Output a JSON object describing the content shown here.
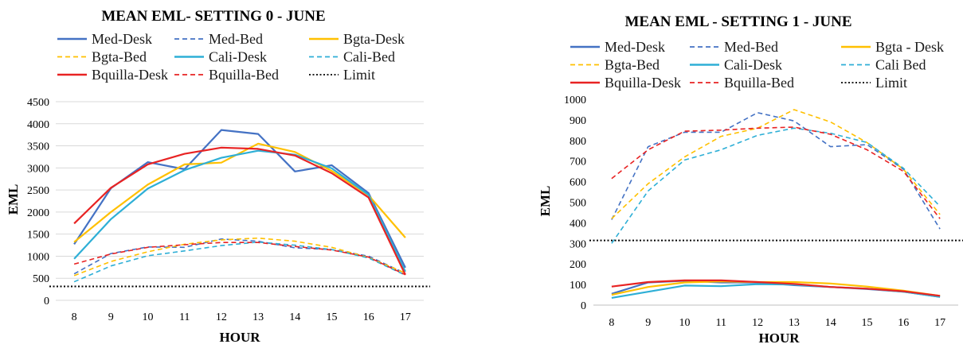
{
  "colors": {
    "med": "#4472c4",
    "bgta": "#ffc000",
    "cali": "#2eafd6",
    "bquilla": "#e82323",
    "limit": "#000000"
  },
  "chart_data": [
    {
      "type": "line",
      "title": "MEAN EML- SETTING 0 - JUNE",
      "xlabel": "HOUR",
      "ylabel": "EML",
      "x": [
        8,
        9,
        10,
        11,
        12,
        13,
        14,
        15,
        16,
        17
      ],
      "ylim": [
        0,
        4500
      ],
      "yticks": [
        0,
        500,
        1000,
        1500,
        2000,
        2500,
        3000,
        3500,
        4000,
        4500
      ],
      "grid": true,
      "legend_position": "top",
      "series": [
        {
          "name": "Med-Desk",
          "color_key": "med",
          "style": "solid",
          "values": [
            1270,
            2540,
            3130,
            2970,
            3860,
            3770,
            2920,
            3060,
            2430,
            740
          ]
        },
        {
          "name": "Med-Bed",
          "color_key": "med",
          "style": "dashed",
          "values": [
            600,
            1060,
            1210,
            1200,
            1390,
            1340,
            1190,
            1150,
            1000,
            610
          ]
        },
        {
          "name": "Bgta-Desk",
          "color_key": "bgta",
          "style": "solid",
          "values": [
            1320,
            2000,
            2620,
            3080,
            3120,
            3550,
            3360,
            2930,
            2380,
            1420
          ]
        },
        {
          "name": "Bgta-Bed",
          "color_key": "bgta",
          "style": "dashed",
          "values": [
            560,
            880,
            1100,
            1270,
            1370,
            1410,
            1340,
            1200,
            970,
            620
          ]
        },
        {
          "name": "Cali-Desk",
          "color_key": "cali",
          "style": "solid",
          "values": [
            940,
            1840,
            2530,
            2950,
            3230,
            3390,
            3300,
            2990,
            2390,
            650
          ]
        },
        {
          "name": "Cali-Bed",
          "color_key": "cali",
          "style": "dashed",
          "values": [
            420,
            780,
            1010,
            1120,
            1240,
            1320,
            1250,
            1150,
            960,
            570
          ]
        },
        {
          "name": "Bquilla-Desk",
          "color_key": "bquilla",
          "style": "solid",
          "values": [
            1740,
            2550,
            3080,
            3320,
            3460,
            3430,
            3280,
            2880,
            2330,
            580
          ]
        },
        {
          "name": "Bquilla-Bed",
          "color_key": "bquilla",
          "style": "dashed",
          "values": [
            820,
            1050,
            1200,
            1260,
            1310,
            1310,
            1220,
            1140,
            980,
            580
          ]
        },
        {
          "name": "Limit",
          "color_key": "limit",
          "style": "dotted",
          "values": [
            314,
            314,
            314,
            314,
            314,
            314,
            314,
            314,
            314,
            314
          ],
          "full_width": true
        }
      ]
    },
    {
      "type": "line",
      "title": "MEAN EML - SETTING 1 - JUNE",
      "xlabel": "HOUR",
      "ylabel": "EML",
      "x": [
        8,
        9,
        10,
        11,
        12,
        13,
        14,
        15,
        16,
        17
      ],
      "ylim": [
        0,
        1000
      ],
      "yticks": [
        0,
        100,
        200,
        300,
        400,
        500,
        600,
        700,
        800,
        900,
        1000
      ],
      "grid": false,
      "legend_position": "top",
      "series": [
        {
          "name": "Med-Desk",
          "color_key": "med",
          "style": "solid",
          "values": [
            55,
            110,
            118,
            110,
            110,
            97,
            88,
            78,
            65,
            40
          ]
        },
        {
          "name": "Med-Bed",
          "color_key": "med",
          "style": "dashed",
          "values": [
            415,
            770,
            840,
            840,
            935,
            895,
            770,
            780,
            660,
            370
          ]
        },
        {
          "name": "Bgta - Desk",
          "color_key": "bgta",
          "style": "solid",
          "values": [
            50,
            88,
            110,
            115,
            112,
            112,
            105,
            90,
            70,
            45
          ]
        },
        {
          "name": "Bgta-Bed",
          "color_key": "bgta",
          "style": "dashed",
          "values": [
            420,
            590,
            720,
            820,
            860,
            950,
            890,
            790,
            660,
            440
          ]
        },
        {
          "name": "Cali-Desk",
          "color_key": "cali",
          "style": "solid",
          "values": [
            35,
            65,
            95,
            92,
            102,
            100,
            88,
            80,
            65,
            40
          ]
        },
        {
          "name": "Cali Bed",
          "color_key": "cali",
          "style": "dashed",
          "values": [
            300,
            555,
            705,
            755,
            825,
            860,
            835,
            790,
            665,
            480
          ]
        },
        {
          "name": "Bquilla-Desk",
          "color_key": "bquilla",
          "style": "solid",
          "values": [
            90,
            112,
            120,
            120,
            112,
            103,
            88,
            80,
            67,
            45
          ]
        },
        {
          "name": "Bquilla-Bed",
          "color_key": "bquilla",
          "style": "dashed",
          "values": [
            615,
            755,
            845,
            850,
            860,
            865,
            830,
            755,
            650,
            420
          ]
        },
        {
          "name": "Limit",
          "color_key": "limit",
          "style": "dotted",
          "values": [
            314,
            314,
            314,
            314,
            314,
            314,
            314,
            314,
            314,
            314
          ],
          "full_width": true
        }
      ]
    }
  ]
}
